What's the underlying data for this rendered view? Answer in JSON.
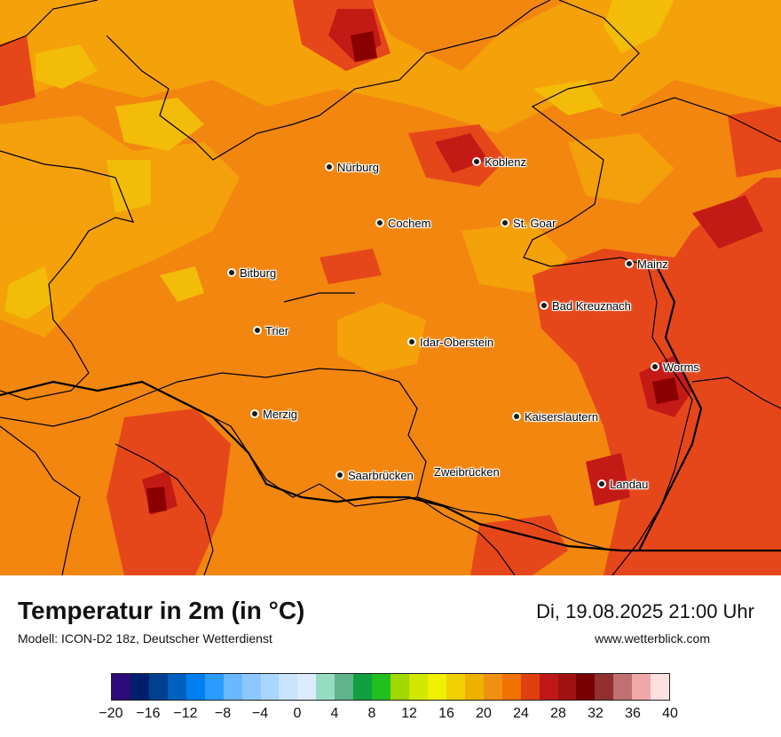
{
  "title": "Temperatur in 2m (in °C)",
  "subtitle": "Modell: ICON-D2 18z, Deutscher Wetterdienst",
  "datetime": "Di, 19.08.2025 21:00 Uhr",
  "website": "www.wetterblick.com",
  "cities": [
    {
      "name": "Nürburg",
      "key": "nuerburg"
    },
    {
      "name": "Koblenz",
      "key": "koblenz"
    },
    {
      "name": "Cochem",
      "key": "cochem"
    },
    {
      "name": "St. Goar",
      "key": "st-goar"
    },
    {
      "name": "Bitburg",
      "key": "bitburg"
    },
    {
      "name": "Mainz",
      "key": "mainz"
    },
    {
      "name": "Bad Kreuznach",
      "key": "bad-kreuznach"
    },
    {
      "name": "Trier",
      "key": "trier"
    },
    {
      "name": "Idar-Oberstein",
      "key": "idar-oberstein"
    },
    {
      "name": "Worms",
      "key": "worms"
    },
    {
      "name": "Merzig",
      "key": "merzig"
    },
    {
      "name": "Kaiserslautern",
      "key": "kaiserslautern"
    },
    {
      "name": "Saarbrücken",
      "key": "saarbruecken"
    },
    {
      "name": "Zweibrücken",
      "key": "zweibruecken"
    },
    {
      "name": "Landau",
      "key": "landau"
    }
  ],
  "legend": {
    "tick_labels": [
      "−20",
      "−16",
      "−12",
      "−8",
      "−4",
      "0",
      "4",
      "8",
      "12",
      "16",
      "20",
      "24",
      "28",
      "32",
      "36",
      "40"
    ],
    "colors": [
      "#2d0a7a",
      "#00206e",
      "#00408f",
      "#0060c0",
      "#0080f0",
      "#2a9cff",
      "#6ab8ff",
      "#8cc8ff",
      "#a9d6ff",
      "#c8e4ff",
      "#dcecff",
      "#96dcc3",
      "#5fb48c",
      "#10a040",
      "#20c020",
      "#a0d800",
      "#d0e800",
      "#f0f000",
      "#f0d000",
      "#f0b000",
      "#f09010",
      "#f07000",
      "#e04010",
      "#c01818",
      "#a01010",
      "#780000",
      "#903030",
      "#c07070",
      "#f0a8a8",
      "#ffe0e0"
    ]
  }
}
